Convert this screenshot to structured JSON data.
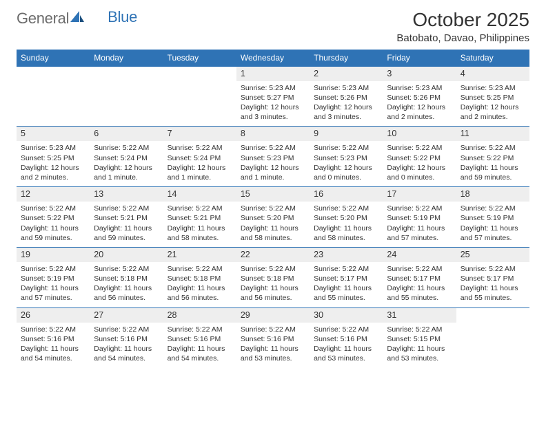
{
  "logo": {
    "word1": "General",
    "word2": "Blue"
  },
  "title": "October 2025",
  "location": "Batobato, Davao, Philippines",
  "colors": {
    "header_blue": "#2f73b5",
    "daynum_bg": "#eeeeee",
    "text": "#333333",
    "background": "#ffffff"
  },
  "weekdays": [
    "Sunday",
    "Monday",
    "Tuesday",
    "Wednesday",
    "Thursday",
    "Friday",
    "Saturday"
  ],
  "weeks": [
    [
      {
        "day": "",
        "sunrise": "",
        "sunset": "",
        "daylight": "",
        "empty": true
      },
      {
        "day": "",
        "sunrise": "",
        "sunset": "",
        "daylight": "",
        "empty": true
      },
      {
        "day": "",
        "sunrise": "",
        "sunset": "",
        "daylight": "",
        "empty": true
      },
      {
        "day": "1",
        "sunrise": "Sunrise: 5:23 AM",
        "sunset": "Sunset: 5:27 PM",
        "daylight": "Daylight: 12 hours and 3 minutes."
      },
      {
        "day": "2",
        "sunrise": "Sunrise: 5:23 AM",
        "sunset": "Sunset: 5:26 PM",
        "daylight": "Daylight: 12 hours and 3 minutes."
      },
      {
        "day": "3",
        "sunrise": "Sunrise: 5:23 AM",
        "sunset": "Sunset: 5:26 PM",
        "daylight": "Daylight: 12 hours and 2 minutes."
      },
      {
        "day": "4",
        "sunrise": "Sunrise: 5:23 AM",
        "sunset": "Sunset: 5:25 PM",
        "daylight": "Daylight: 12 hours and 2 minutes."
      }
    ],
    [
      {
        "day": "5",
        "sunrise": "Sunrise: 5:23 AM",
        "sunset": "Sunset: 5:25 PM",
        "daylight": "Daylight: 12 hours and 2 minutes."
      },
      {
        "day": "6",
        "sunrise": "Sunrise: 5:22 AM",
        "sunset": "Sunset: 5:24 PM",
        "daylight": "Daylight: 12 hours and 1 minute."
      },
      {
        "day": "7",
        "sunrise": "Sunrise: 5:22 AM",
        "sunset": "Sunset: 5:24 PM",
        "daylight": "Daylight: 12 hours and 1 minute."
      },
      {
        "day": "8",
        "sunrise": "Sunrise: 5:22 AM",
        "sunset": "Sunset: 5:23 PM",
        "daylight": "Daylight: 12 hours and 1 minute."
      },
      {
        "day": "9",
        "sunrise": "Sunrise: 5:22 AM",
        "sunset": "Sunset: 5:23 PM",
        "daylight": "Daylight: 12 hours and 0 minutes."
      },
      {
        "day": "10",
        "sunrise": "Sunrise: 5:22 AM",
        "sunset": "Sunset: 5:22 PM",
        "daylight": "Daylight: 12 hours and 0 minutes."
      },
      {
        "day": "11",
        "sunrise": "Sunrise: 5:22 AM",
        "sunset": "Sunset: 5:22 PM",
        "daylight": "Daylight: 11 hours and 59 minutes."
      }
    ],
    [
      {
        "day": "12",
        "sunrise": "Sunrise: 5:22 AM",
        "sunset": "Sunset: 5:22 PM",
        "daylight": "Daylight: 11 hours and 59 minutes."
      },
      {
        "day": "13",
        "sunrise": "Sunrise: 5:22 AM",
        "sunset": "Sunset: 5:21 PM",
        "daylight": "Daylight: 11 hours and 59 minutes."
      },
      {
        "day": "14",
        "sunrise": "Sunrise: 5:22 AM",
        "sunset": "Sunset: 5:21 PM",
        "daylight": "Daylight: 11 hours and 58 minutes."
      },
      {
        "day": "15",
        "sunrise": "Sunrise: 5:22 AM",
        "sunset": "Sunset: 5:20 PM",
        "daylight": "Daylight: 11 hours and 58 minutes."
      },
      {
        "day": "16",
        "sunrise": "Sunrise: 5:22 AM",
        "sunset": "Sunset: 5:20 PM",
        "daylight": "Daylight: 11 hours and 58 minutes."
      },
      {
        "day": "17",
        "sunrise": "Sunrise: 5:22 AM",
        "sunset": "Sunset: 5:19 PM",
        "daylight": "Daylight: 11 hours and 57 minutes."
      },
      {
        "day": "18",
        "sunrise": "Sunrise: 5:22 AM",
        "sunset": "Sunset: 5:19 PM",
        "daylight": "Daylight: 11 hours and 57 minutes."
      }
    ],
    [
      {
        "day": "19",
        "sunrise": "Sunrise: 5:22 AM",
        "sunset": "Sunset: 5:19 PM",
        "daylight": "Daylight: 11 hours and 57 minutes."
      },
      {
        "day": "20",
        "sunrise": "Sunrise: 5:22 AM",
        "sunset": "Sunset: 5:18 PM",
        "daylight": "Daylight: 11 hours and 56 minutes."
      },
      {
        "day": "21",
        "sunrise": "Sunrise: 5:22 AM",
        "sunset": "Sunset: 5:18 PM",
        "daylight": "Daylight: 11 hours and 56 minutes."
      },
      {
        "day": "22",
        "sunrise": "Sunrise: 5:22 AM",
        "sunset": "Sunset: 5:18 PM",
        "daylight": "Daylight: 11 hours and 56 minutes."
      },
      {
        "day": "23",
        "sunrise": "Sunrise: 5:22 AM",
        "sunset": "Sunset: 5:17 PM",
        "daylight": "Daylight: 11 hours and 55 minutes."
      },
      {
        "day": "24",
        "sunrise": "Sunrise: 5:22 AM",
        "sunset": "Sunset: 5:17 PM",
        "daylight": "Daylight: 11 hours and 55 minutes."
      },
      {
        "day": "25",
        "sunrise": "Sunrise: 5:22 AM",
        "sunset": "Sunset: 5:17 PM",
        "daylight": "Daylight: 11 hours and 55 minutes."
      }
    ],
    [
      {
        "day": "26",
        "sunrise": "Sunrise: 5:22 AM",
        "sunset": "Sunset: 5:16 PM",
        "daylight": "Daylight: 11 hours and 54 minutes."
      },
      {
        "day": "27",
        "sunrise": "Sunrise: 5:22 AM",
        "sunset": "Sunset: 5:16 PM",
        "daylight": "Daylight: 11 hours and 54 minutes."
      },
      {
        "day": "28",
        "sunrise": "Sunrise: 5:22 AM",
        "sunset": "Sunset: 5:16 PM",
        "daylight": "Daylight: 11 hours and 54 minutes."
      },
      {
        "day": "29",
        "sunrise": "Sunrise: 5:22 AM",
        "sunset": "Sunset: 5:16 PM",
        "daylight": "Daylight: 11 hours and 53 minutes."
      },
      {
        "day": "30",
        "sunrise": "Sunrise: 5:22 AM",
        "sunset": "Sunset: 5:16 PM",
        "daylight": "Daylight: 11 hours and 53 minutes."
      },
      {
        "day": "31",
        "sunrise": "Sunrise: 5:22 AM",
        "sunset": "Sunset: 5:15 PM",
        "daylight": "Daylight: 11 hours and 53 minutes."
      },
      {
        "day": "",
        "sunrise": "",
        "sunset": "",
        "daylight": "",
        "empty": true
      }
    ]
  ]
}
